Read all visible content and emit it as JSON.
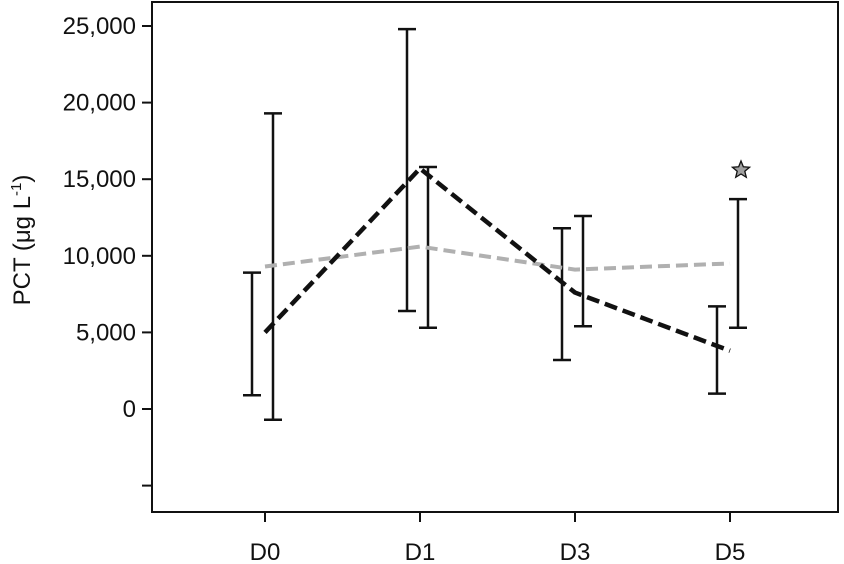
{
  "chart_data": {
    "type": "line",
    "ylabel": "PCT (μg L⁻¹)",
    "ylabel_main": "PCT (μg L",
    "ylabel_sup": "-1",
    "ylabel_close": ")",
    "categories": [
      "D0",
      "D1",
      "D3",
      "D5"
    ],
    "ylim": [
      -5000,
      26500
    ],
    "yticks": [
      -5000,
      0,
      5000,
      10000,
      15000,
      20000,
      25000
    ],
    "ytick_labels": [
      "",
      "0",
      "5,000",
      "10,000",
      "15,000",
      "20,000",
      "25,000"
    ],
    "grid": false,
    "legend": "none",
    "series": [
      {
        "style": "dashed",
        "color": "#111111",
        "values": [
          5000,
          15700,
          7600,
          3800
        ],
        "error_bars": [
          [
            900,
            8900
          ],
          [
            6400,
            24800
          ],
          [
            3200,
            11800
          ],
          [
            1000,
            6700
          ]
        ]
      },
      {
        "style": "dashed",
        "color": "#b0b0b0",
        "values": [
          9300,
          10600,
          9100,
          9500
        ],
        "error_bars": [
          [
            -700,
            19300
          ],
          [
            5300,
            15800
          ],
          [
            5400,
            12600
          ],
          [
            5300,
            13700
          ]
        ]
      }
    ],
    "annotations": [
      {
        "category": "D5",
        "value": 15600,
        "marker": "star",
        "color": "#a0a0a0"
      }
    ]
  }
}
